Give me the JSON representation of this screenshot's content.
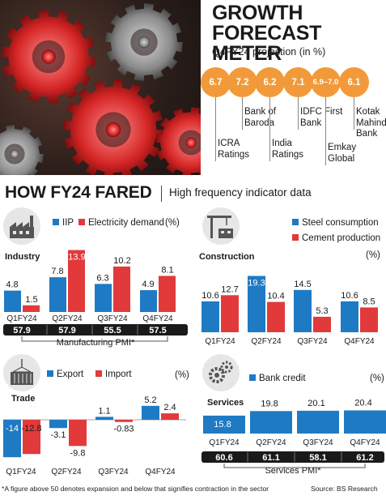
{
  "colors": {
    "blue": "#1f7ac4",
    "red": "#e23a3a",
    "orange": "#f29a3a",
    "dark": "#1a1a1a"
  },
  "forecast": {
    "title_line1": "GROWTH",
    "title_line2": "FORECAST METER",
    "subtitle": "Q4FY24 projection (in %)",
    "items": [
      {
        "value": "6.7",
        "label": "ICRA Ratings"
      },
      {
        "value": "7.2",
        "label": "Bank of Baroda"
      },
      {
        "value": "6.2",
        "label": "India Ratings"
      },
      {
        "value": "7.1",
        "label": "IDFC First Bank"
      },
      {
        "value": "6.9–7.0",
        "label": "Emkay Global"
      },
      {
        "value": "6.1",
        "label": "Kotak Mahindra Bank"
      }
    ]
  },
  "header": {
    "title": "HOW FY24 FARED",
    "subtitle": "High frequency indicator data"
  },
  "chart_data": [
    {
      "type": "bar",
      "panel": "Industry",
      "categories": [
        "Q1FY24",
        "Q2FY24",
        "Q3FY24",
        "Q4FY24"
      ],
      "series": [
        {
          "name": "IIP",
          "values": [
            4.8,
            7.8,
            6.3,
            4.9
          ]
        },
        {
          "name": "Electricity demand",
          "values": [
            1.5,
            13.9,
            10.2,
            8.1
          ]
        }
      ],
      "unit": "(%)",
      "pmi_label": "Manufacturing PMI*",
      "pmi": [
        57.9,
        57.9,
        55.5,
        57.5
      ]
    },
    {
      "type": "bar",
      "panel": "Construction",
      "categories": [
        "Q1FY24",
        "Q2FY24",
        "Q3FY24",
        "Q4FY24"
      ],
      "series": [
        {
          "name": "Steel consumption",
          "values": [
            10.6,
            19.3,
            14.5,
            10.6
          ]
        },
        {
          "name": "Cement production",
          "values": [
            12.7,
            10.4,
            5.3,
            8.5
          ]
        }
      ],
      "unit": "(%)"
    },
    {
      "type": "bar",
      "panel": "Trade",
      "categories": [
        "Q1FY24",
        "Q2FY24",
        "Q3FY24",
        "Q4FY24"
      ],
      "series": [
        {
          "name": "Export",
          "values": [
            -14,
            -3.1,
            1.1,
            5.2
          ]
        },
        {
          "name": "Import",
          "values": [
            -12.8,
            -9.8,
            -0.83,
            2.4
          ]
        }
      ],
      "unit": "(%)"
    },
    {
      "type": "bar",
      "panel": "Services",
      "categories": [
        "Q1FY24",
        "Q2FY24",
        "Q3FY24",
        "Q4FY24"
      ],
      "series": [
        {
          "name": "Bank credit",
          "values": [
            15.8,
            19.8,
            20.1,
            20.4
          ]
        }
      ],
      "unit": "(%)",
      "pmi_label": "Services PMI*",
      "pmi": [
        60.6,
        61.1,
        58.1,
        61.2
      ]
    }
  ],
  "footer": {
    "note": "*A figure above 50 denotes expansion and below that signifies contraction in the sector",
    "source": "Source: BS Research"
  }
}
